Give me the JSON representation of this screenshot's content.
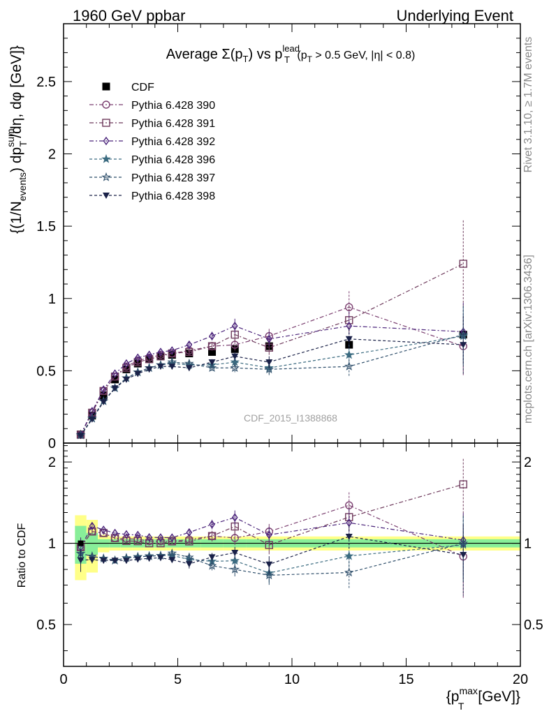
{
  "header": {
    "left": "1960 GeV ppbar",
    "right": "Underlying Event",
    "watermark": "CDF_2015_I1388868",
    "side_top": "Rivet 3.1.10, ≥ 1.7M events",
    "side_bottom": "mcplots.cern.ch [arXiv:1306.3436]"
  },
  "title": {
    "main": "Average Σ(p",
    "sub1": "T",
    "mid": ") vs p",
    "sup": "lead",
    "sub2": "T",
    "tail": " (p",
    "sub3": "T",
    "end": " > 0.5 GeV, |η| < 0.8)"
  },
  "axes": {
    "ylabel_top": "{(1/N",
    "ylabel_sub1": "events",
    "ylabel_mid": ") dp",
    "ylabel_sup": "sum",
    "ylabel_sub2": "T",
    "ylabel_end": "/dη, dφ [GeV]}",
    "ylabel_ratio": "Ratio to CDF",
    "xlabel_pre": "{p",
    "xlabel_sup": "max",
    "xlabel_sub": "T",
    "xlabel_post": " [GeV]}"
  },
  "legend": {
    "placement": "top-left",
    "entries": [
      "CDF",
      "Pythia 6.428 390",
      "Pythia 6.428 391",
      "Pythia 6.428 392",
      "Pythia 6.428 396",
      "Pythia 6.428 397",
      "Pythia 6.428 398"
    ]
  },
  "chart_data": {
    "type": "scatter",
    "xlim": [
      0,
      20
    ],
    "ylim": [
      0,
      2.9
    ],
    "ratio_ylim": [
      0.35,
      2.35
    ],
    "x_ticks": [
      "0",
      "5",
      "10",
      "15",
      "20"
    ],
    "y_ticks": [
      "0",
      "0.5",
      "1",
      "1.5",
      "2",
      "2.5"
    ],
    "ratio_y_ticks": [
      "0.5",
      "1",
      "2"
    ],
    "grid": false,
    "x": [
      0.75,
      1.25,
      1.75,
      2.25,
      2.75,
      3.25,
      3.75,
      4.25,
      4.75,
      5.5,
      6.5,
      7.5,
      9.0,
      12.5,
      17.5
    ],
    "data": {
      "name": "CDF",
      "color": "#000000",
      "values": [
        0.06,
        0.19,
        0.33,
        0.44,
        0.51,
        0.55,
        0.58,
        0.6,
        0.61,
        0.62,
        0.63,
        0.65,
        0.67,
        0.68,
        0.75
      ],
      "band_inner": [
        0.06,
        0.05,
        0.03,
        0.03,
        0.03,
        0.03,
        0.03,
        0.03,
        0.03,
        0.03,
        0.04,
        0.04,
        0.05,
        0.05,
        0.05
      ],
      "band_outer": [
        0.17,
        0.12,
        0.07,
        0.06,
        0.06,
        0.06,
        0.06,
        0.06,
        0.06,
        0.06,
        0.07,
        0.07,
        0.08,
        0.08,
        0.08
      ]
    },
    "series": [
      {
        "name": "Pythia 6.428 390",
        "color": "#7b3f70",
        "marker": "circle-open",
        "dash": "dashdot",
        "values": [
          0.058,
          0.21,
          0.36,
          0.46,
          0.53,
          0.57,
          0.59,
          0.61,
          0.62,
          0.64,
          0.67,
          0.68,
          0.74,
          0.94,
          0.67
        ],
        "errors": [
          0.005,
          0.005,
          0.005,
          0.005,
          0.005,
          0.01,
          0.01,
          0.01,
          0.01,
          0.02,
          0.03,
          0.04,
          0.05,
          0.11,
          0.2
        ]
      },
      {
        "name": "Pythia 6.428 391",
        "color": "#6e3a5c",
        "marker": "square-open",
        "dash": "dashdot",
        "values": [
          0.058,
          0.21,
          0.36,
          0.46,
          0.52,
          0.56,
          0.58,
          0.6,
          0.62,
          0.63,
          0.67,
          0.75,
          0.66,
          0.85,
          1.24
        ],
        "errors": [
          0.005,
          0.005,
          0.005,
          0.005,
          0.005,
          0.01,
          0.01,
          0.01,
          0.01,
          0.02,
          0.03,
          0.05,
          0.05,
          0.1,
          0.3
        ]
      },
      {
        "name": "Pythia 6.428 392",
        "color": "#4a237a",
        "marker": "diamond-open",
        "dash": "dashdot",
        "values": [
          0.058,
          0.22,
          0.37,
          0.48,
          0.55,
          0.59,
          0.61,
          0.63,
          0.64,
          0.68,
          0.74,
          0.81,
          0.72,
          0.81,
          0.77
        ],
        "errors": [
          0.005,
          0.005,
          0.005,
          0.005,
          0.005,
          0.01,
          0.01,
          0.01,
          0.01,
          0.02,
          0.03,
          0.05,
          0.05,
          0.1,
          0.2
        ]
      },
      {
        "name": "Pythia 6.428 396",
        "color": "#3b6b80",
        "marker": "star-filled",
        "dash": "dashed",
        "values": [
          0.055,
          0.17,
          0.29,
          0.38,
          0.45,
          0.49,
          0.52,
          0.54,
          0.55,
          0.54,
          0.54,
          0.56,
          0.52,
          0.61,
          0.74
        ],
        "errors": [
          0.005,
          0.005,
          0.005,
          0.005,
          0.005,
          0.01,
          0.01,
          0.01,
          0.01,
          0.02,
          0.02,
          0.03,
          0.04,
          0.07,
          0.2
        ]
      },
      {
        "name": "Pythia 6.428 397",
        "color": "#2f4f6b",
        "marker": "star-open",
        "dash": "dashed",
        "values": [
          0.055,
          0.17,
          0.29,
          0.38,
          0.45,
          0.49,
          0.52,
          0.54,
          0.56,
          0.55,
          0.52,
          0.52,
          0.51,
          0.53,
          0.75
        ],
        "errors": [
          0.005,
          0.005,
          0.005,
          0.005,
          0.005,
          0.01,
          0.01,
          0.01,
          0.01,
          0.02,
          0.02,
          0.03,
          0.04,
          0.07,
          0.2
        ]
      },
      {
        "name": "Pythia 6.428 398",
        "color": "#1a2148",
        "marker": "triangle-down-filled",
        "dash": "dashed",
        "values": [
          0.052,
          0.165,
          0.285,
          0.38,
          0.44,
          0.48,
          0.51,
          0.53,
          0.53,
          0.52,
          0.56,
          0.6,
          0.56,
          0.72,
          0.68
        ],
        "errors": [
          0.005,
          0.005,
          0.005,
          0.005,
          0.005,
          0.01,
          0.01,
          0.01,
          0.01,
          0.02,
          0.02,
          0.03,
          0.04,
          0.07,
          0.2
        ]
      }
    ]
  }
}
